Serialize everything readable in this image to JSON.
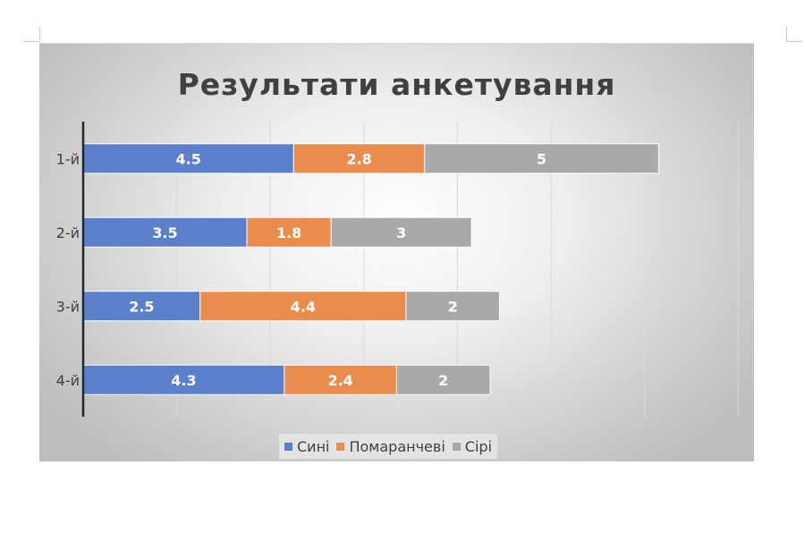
{
  "chart_data": {
    "type": "bar",
    "orientation": "horizontal",
    "stacked": true,
    "title": "Результати анкетування",
    "categories": [
      "1-й",
      "2-й",
      "3-й",
      "4-й"
    ],
    "series": [
      {
        "name": "Сині",
        "color": "#5b7fcb",
        "values": [
          4.5,
          3.5,
          2.5,
          4.3
        ]
      },
      {
        "name": "Помаранчеві",
        "color": "#ea8c4e",
        "values": [
          2.8,
          1.8,
          4.4,
          2.4
        ]
      },
      {
        "name": "Сірі",
        "color": "#a9a9a9",
        "values": [
          5,
          3,
          2,
          2
        ]
      }
    ],
    "xlim": [
      0,
      14
    ],
    "gridlines": true,
    "x_tick_labels_visible": false,
    "legend_position": "bottom",
    "data_labels": true
  }
}
